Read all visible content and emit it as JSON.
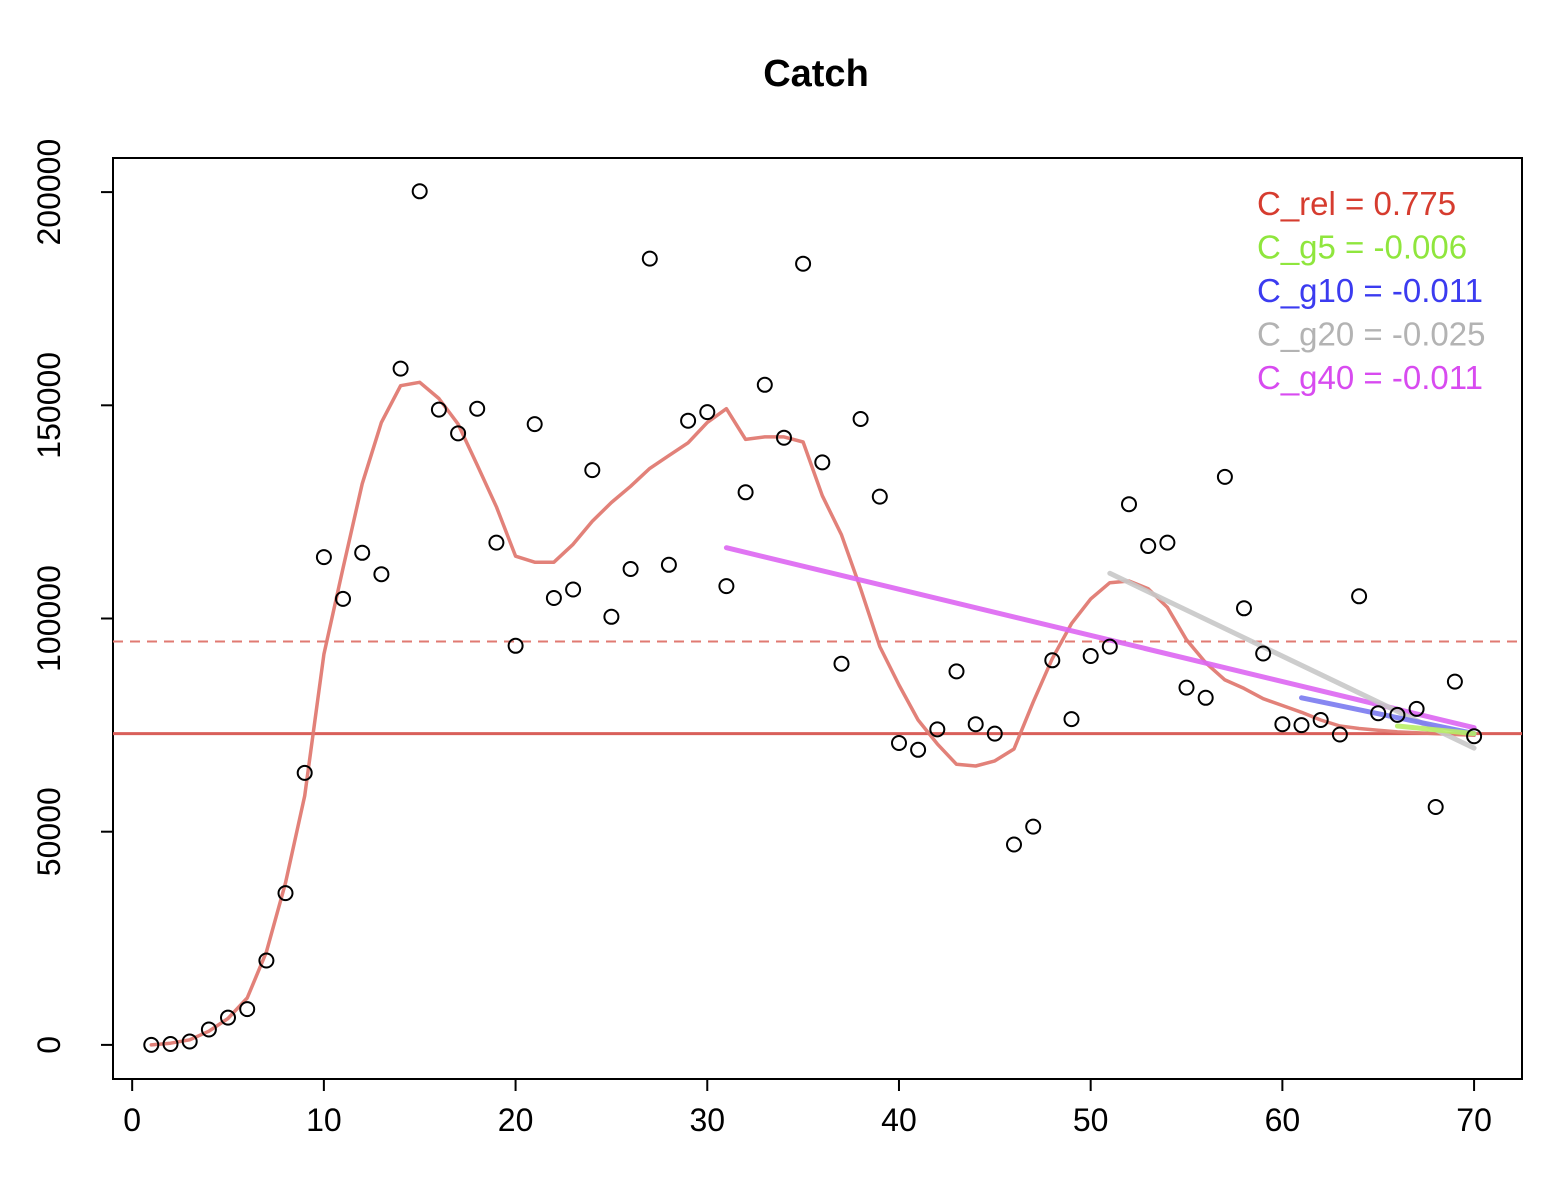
{
  "chart_data": {
    "type": "scatter",
    "title": "Catch",
    "xlabel": "",
    "ylabel": "",
    "xlim": [
      -1,
      72.5
    ],
    "ylim": [
      -8000,
      208000
    ],
    "x_ticks": [
      0,
      10,
      20,
      30,
      40,
      50,
      60,
      70
    ],
    "x_tick_labels": [
      "0",
      "10",
      "20",
      "30",
      "40",
      "50",
      "60",
      "70"
    ],
    "y_ticks": [
      0,
      50000,
      100000,
      150000,
      200000
    ],
    "y_tick_labels": [
      "0",
      "50000",
      "100000",
      "150000",
      "200000"
    ],
    "grid": false,
    "legend_position": "top-right",
    "points": {
      "x": [
        1,
        2,
        3,
        4,
        5,
        6,
        7,
        8,
        9,
        10,
        11,
        12,
        13,
        14,
        15,
        16,
        17,
        18,
        19,
        20,
        21,
        22,
        23,
        24,
        25,
        26,
        27,
        28,
        29,
        30,
        31,
        32,
        33,
        34,
        35,
        36,
        37,
        38,
        39,
        40,
        41,
        42,
        43,
        44,
        45,
        46,
        47,
        48,
        49,
        50,
        51,
        52,
        53,
        54,
        55,
        56,
        57,
        58,
        59,
        60,
        61,
        62,
        63,
        64,
        65,
        66,
        67,
        68,
        69,
        70
      ],
      "y": [
        0,
        200,
        800,
        3600,
        6400,
        8400,
        19800,
        35600,
        63800,
        114400,
        104600,
        115400,
        110400,
        158600,
        200200,
        149000,
        143400,
        149200,
        117800,
        93600,
        145600,
        104800,
        106800,
        134800,
        100400,
        111600,
        184400,
        112600,
        146400,
        148400,
        107600,
        129600,
        154800,
        142400,
        183200,
        136600,
        89400,
        146800,
        128600,
        70800,
        69200,
        74000,
        87600,
        75200,
        73000,
        47000,
        51200,
        90200,
        76400,
        91200,
        93400,
        126800,
        117000,
        117800,
        83800,
        81400,
        133200,
        102400,
        91800,
        75200,
        75000,
        76200,
        72800,
        105200,
        77800,
        77400,
        78800,
        55800,
        85200,
        72400
      ],
      "color": "#000000"
    },
    "smooth_curve": {
      "color": "#e07a72",
      "x": [
        1,
        2,
        3,
        4,
        5,
        6,
        7,
        8,
        9,
        10,
        11,
        12,
        13,
        14,
        15,
        16,
        17,
        18,
        19,
        20,
        21,
        22,
        23,
        24,
        25,
        26,
        27,
        28,
        29,
        30,
        31,
        32,
        33,
        34,
        35,
        36,
        37,
        38,
        39,
        40,
        41,
        42,
        43,
        44,
        45,
        46,
        47,
        48,
        49,
        50,
        51,
        52,
        53,
        54,
        55,
        56,
        57,
        58,
        59,
        60,
        61,
        62,
        63,
        64,
        65,
        66,
        67,
        68,
        69,
        70
      ],
      "y": [
        0,
        400,
        1200,
        3200,
        6200,
        11000,
        21800,
        38000,
        58400,
        91600,
        111800,
        131600,
        146000,
        154600,
        155400,
        151600,
        145600,
        136000,
        126200,
        114600,
        113200,
        113200,
        117400,
        122800,
        127200,
        131000,
        135200,
        138200,
        141200,
        146000,
        149200,
        142000,
        142600,
        142600,
        141400,
        128800,
        119600,
        107000,
        93400,
        84400,
        76200,
        70600,
        65800,
        65400,
        66600,
        69400,
        80400,
        90600,
        98800,
        104600,
        108400,
        108800,
        107000,
        102600,
        95000,
        89600,
        85600,
        83600,
        81200,
        79600,
        78000,
        76200,
        74800,
        74200,
        73800,
        73400,
        73200,
        73000,
        72800,
        72600
      ]
    },
    "hlines": [
      {
        "y": 94600,
        "style": "dashed",
        "color": "#e07a72"
      },
      {
        "y": 73000,
        "style": "solid",
        "color": "#d95f5a"
      }
    ],
    "trend_lines": [
      {
        "name": "C_g40",
        "color": "#dd66f2",
        "x": [
          31,
          70
        ],
        "y": [
          116600,
          74400
        ]
      },
      {
        "name": "C_g20",
        "color": "#c8c8c8",
        "x": [
          51,
          70
        ],
        "y": [
          110600,
          69600
        ]
      },
      {
        "name": "C_g10",
        "color": "#7a7af0",
        "x": [
          61,
          70
        ],
        "y": [
          81400,
          73000
        ]
      },
      {
        "name": "C_g5",
        "color": "#b8ee66",
        "x": [
          66,
          70
        ],
        "y": [
          74800,
          73000
        ]
      }
    ],
    "legend": [
      {
        "text": "C_rel = 0.775",
        "color": "#d63c2f"
      },
      {
        "text": "C_g5 = -0.006",
        "color": "#8fe63d"
      },
      {
        "text": "C_g10 = -0.011",
        "color": "#3b3bf0"
      },
      {
        "text": "C_g20 = -0.025",
        "color": "#b3b3b3"
      },
      {
        "text": "C_g40 = -0.011",
        "color": "#d84bf0"
      }
    ]
  }
}
